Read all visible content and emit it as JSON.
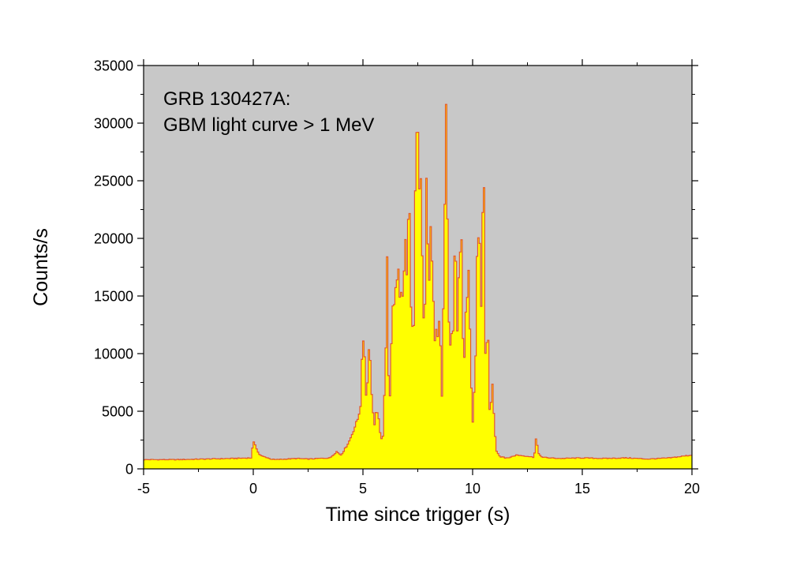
{
  "chart_data": {
    "type": "area",
    "title": "",
    "annotation": [
      "GRB 130427A:",
      "GBM light curve > 1 MeV"
    ],
    "xlabel": "Time since trigger (s)",
    "ylabel": "Counts/s",
    "xlim": [
      -5,
      20
    ],
    "ylim": [
      0,
      35000
    ],
    "x_ticks": [
      -5,
      0,
      5,
      10,
      15,
      20
    ],
    "x_tick_labels": [
      "-5",
      "0",
      "5",
      "10",
      "15",
      "20"
    ],
    "y_ticks": [
      0,
      5000,
      10000,
      15000,
      20000,
      25000,
      30000,
      35000
    ],
    "y_tick_labels": [
      "0",
      "5000",
      "10000",
      "15000",
      "20000",
      "25000",
      "30000",
      "35000"
    ],
    "grid": false,
    "step_style": "histogram",
    "colors": {
      "plot_background": "#c8c8c8",
      "fill": "#ffff00",
      "line": "#e4572e"
    },
    "series": [
      {
        "bin_width": 0.064,
        "x": [
          -5.0,
          -3.5,
          -1.0,
          -0.1,
          0.0,
          0.1,
          0.2,
          0.3,
          0.4,
          0.6,
          0.8,
          1.0,
          1.5,
          2.0,
          2.5,
          3.0,
          3.5,
          3.8,
          4.0,
          4.2,
          4.4,
          4.6,
          4.8,
          4.9,
          5.0,
          5.05,
          5.1,
          5.15,
          5.2,
          5.3,
          5.4,
          5.5,
          5.6,
          5.7,
          5.8,
          5.9,
          6.0,
          6.05,
          6.1,
          6.15,
          6.2,
          6.25,
          6.3,
          6.4,
          6.5,
          6.6,
          6.7,
          6.8,
          6.9,
          7.0,
          7.1,
          7.2,
          7.3,
          7.4,
          7.5,
          7.55,
          7.6,
          7.7,
          7.8,
          7.85,
          7.9,
          8.0,
          8.05,
          8.1,
          8.2,
          8.3,
          8.4,
          8.5,
          8.6,
          8.7,
          8.8,
          8.9,
          9.0,
          9.05,
          9.1,
          9.2,
          9.3,
          9.4,
          9.5,
          9.55,
          9.6,
          9.7,
          9.8,
          9.9,
          10.0,
          10.05,
          10.1,
          10.2,
          10.3,
          10.4,
          10.5,
          10.6,
          10.7,
          10.8,
          10.85,
          10.9,
          11.0,
          11.1,
          11.2,
          11.3,
          11.4,
          11.5,
          11.7,
          12.0,
          12.5,
          12.8,
          12.9,
          13.0,
          13.2,
          13.5,
          14.0,
          15.0,
          16.0,
          17.0,
          18.0,
          19.0,
          20.0
        ],
        "y": [
          800,
          800,
          900,
          950,
          2300,
          2100,
          1500,
          1200,
          1100,
          1000,
          850,
          800,
          850,
          900,
          850,
          900,
          950,
          1500,
          1200,
          1800,
          2500,
          3500,
          4500,
          6000,
          11000,
          12600,
          9000,
          6000,
          8000,
          11200,
          7000,
          3500,
          5000,
          4500,
          3000,
          2000,
          8500,
          12000,
          19800,
          6500,
          9500,
          5500,
          10500,
          14500,
          16000,
          18800,
          15000,
          14000,
          19800,
          16800,
          23500,
          15000,
          9000,
          24500,
          30100,
          19000,
          27000,
          18500,
          11000,
          15500,
          26000,
          12500,
          19000,
          24300,
          14000,
          10000,
          12500,
          14500,
          7000,
          19000,
          32400,
          14000,
          9000,
          13000,
          10000,
          19800,
          11000,
          17500,
          20500,
          12000,
          8500,
          13500,
          18000,
          11000,
          3000,
          9000,
          3500,
          19500,
          22000,
          12000,
          27000,
          8000,
          12000,
          3500,
          6000,
          8000,
          3500,
          1500,
          1200,
          1000,
          1100,
          900,
          1000,
          1200,
          1100,
          1000,
          2800,
          1300,
          1000,
          950,
          900,
          950,
          900,
          950,
          850,
          950,
          1200
        ]
      }
    ]
  }
}
